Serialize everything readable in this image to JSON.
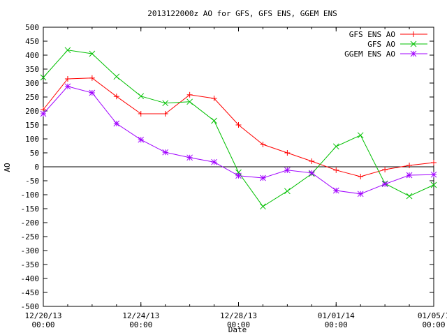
{
  "chart_data": {
    "type": "line",
    "title": "2013122000z AO for GFS, GFS ENS, GGEM ENS",
    "xlabel": "Date",
    "ylabel": "AO",
    "ylim": [
      -500,
      500
    ],
    "yticks": [
      500,
      450,
      400,
      350,
      300,
      250,
      200,
      150,
      100,
      50,
      0,
      -50,
      -100,
      -150,
      -200,
      -250,
      -300,
      -350,
      -400,
      -450,
      -500
    ],
    "xlim": [
      "2013-12-20 00:00",
      "2014-01-05 00:00"
    ],
    "xticks": [
      {
        "x": "2013-12-20 00:00",
        "line1": "12/20/13",
        "line2": "00:00"
      },
      {
        "x": "2013-12-24 00:00",
        "line1": "12/24/13",
        "line2": "00:00"
      },
      {
        "x": "2013-12-28 00:00",
        "line1": "12/28/13",
        "line2": "00:00"
      },
      {
        "x": "2014-01-01 00:00",
        "line1": "01/01/14",
        "line2": "00:00"
      },
      {
        "x": "2014-01-05 00:00",
        "line1": "01/05/1",
        "line2": "00:00"
      }
    ],
    "zero_line": true,
    "legend_position": "top-right",
    "x": [
      "2013-12-20 00:00",
      "2013-12-21 00:00",
      "2013-12-22 00:00",
      "2013-12-23 00:00",
      "2013-12-24 00:00",
      "2013-12-25 00:00",
      "2013-12-26 00:00",
      "2013-12-27 00:00",
      "2013-12-28 00:00",
      "2013-12-29 00:00",
      "2013-12-30 00:00",
      "2013-12-31 00:00",
      "2014-01-01 00:00",
      "2014-01-02 00:00",
      "2014-01-03 00:00",
      "2014-01-04 00:00",
      "2014-01-05 00:00"
    ],
    "series": [
      {
        "name": "GFS ENS AO",
        "color": "#ff0000",
        "marker": "plus",
        "values": [
          205,
          315,
          318,
          252,
          190,
          190,
          258,
          245,
          150,
          80,
          50,
          20,
          -12,
          -35,
          -10,
          5,
          15
        ]
      },
      {
        "name": "GFS AO",
        "color": "#00c000",
        "marker": "cross",
        "values": [
          320,
          418,
          405,
          323,
          253,
          228,
          233,
          165,
          -20,
          -142,
          -87,
          -25,
          73,
          113,
          -60,
          -105,
          -65
        ]
      },
      {
        "name": "GGEM ENS AO",
        "color": "#a000ff",
        "marker": "star",
        "values": [
          190,
          288,
          265,
          155,
          97,
          52,
          33,
          17,
          -32,
          -40,
          -12,
          -22,
          -85,
          -97,
          -62,
          -30,
          -28
        ]
      }
    ]
  }
}
